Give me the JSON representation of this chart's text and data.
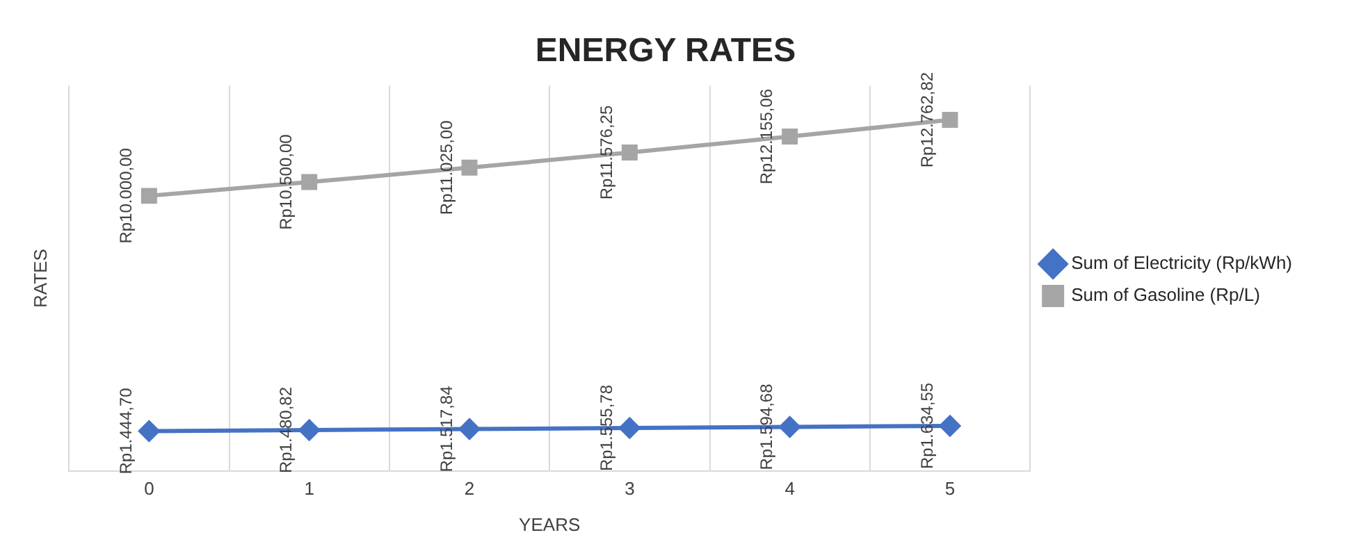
{
  "chart_data": {
    "type": "line",
    "title": "ENERGY RATES",
    "xlabel": "YEARS",
    "ylabel": "RATES",
    "categories": [
      "0",
      "1",
      "2",
      "3",
      "4",
      "5"
    ],
    "series": [
      {
        "name": "Sum of Electricity (Rp/kWh)",
        "color": "#4472c4",
        "marker": "diamond",
        "values": [
          1444.7,
          1480.82,
          1517.84,
          1555.78,
          1594.68,
          1634.55
        ],
        "value_labels": [
          "Rp1.444,70",
          "Rp1.480,82",
          "Rp1.517,84",
          "Rp1.555,78",
          "Rp1.594,68",
          "Rp1.634,55"
        ]
      },
      {
        "name": "Sum of Gasoline (Rp/L)",
        "color": "#a5a5a5",
        "marker": "square",
        "values": [
          10000.0,
          10500.0,
          11025.0,
          11576.25,
          12155.06,
          12762.82
        ],
        "value_labels": [
          "Rp10.000,00",
          "Rp10.500,00",
          "Rp11.025,00",
          "Rp11.576,25",
          "Rp12.155,06",
          "Rp12.762,82"
        ]
      }
    ],
    "grid": "x",
    "legend": "right"
  }
}
